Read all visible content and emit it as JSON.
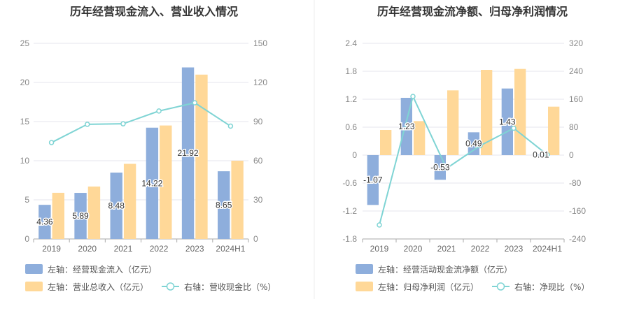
{
  "colors": {
    "bar_blue": "#8eaedc",
    "bar_orange": "#ffd898",
    "line_cyan": "#7fd4d4",
    "grid": "#e6e6ee",
    "axis": "#aaaaaa",
    "divider": "#eeeeee"
  },
  "chart_data": [
    {
      "type": "bar",
      "title": "历年经营现金流入、营业收入情况",
      "categories": [
        "2019",
        "2020",
        "2021",
        "2022",
        "2023",
        "2024H1"
      ],
      "left_axis": {
        "ticks": [
          "0",
          "5",
          "10",
          "15",
          "20",
          "25"
        ],
        "ylim": [
          0,
          25
        ]
      },
      "right_axis": {
        "ticks": [
          "0",
          "30",
          "60",
          "90",
          "120",
          "150"
        ],
        "ylim": [
          0,
          150
        ]
      },
      "series": [
        {
          "name": "经营现金流入",
          "axis": "left",
          "kind": "bar",
          "values": [
            4.36,
            5.89,
            8.48,
            14.22,
            21.92,
            8.65
          ],
          "labels": [
            "4.36",
            "5.89",
            "8.48",
            "14.22",
            "21.92",
            "8.65"
          ]
        },
        {
          "name": "营业总收入",
          "axis": "left",
          "kind": "bar",
          "values": [
            5.9,
            6.7,
            9.6,
            14.5,
            21.0,
            10.0
          ]
        },
        {
          "name": "营收现金比",
          "axis": "right",
          "kind": "line",
          "values": [
            73.9,
            87.9,
            88.3,
            98.1,
            104.4,
            86.5
          ]
        }
      ],
      "legend": [
        {
          "swatch": "bar",
          "color": "#8eaedc",
          "text": "左轴：经营现金流入（亿元）"
        },
        {
          "swatch": "bar",
          "color": "#ffd898",
          "text": "左轴：营业总收入（亿元）"
        },
        {
          "swatch": "line",
          "color": "#7fd4d4",
          "text": "右轴：营收现金比（%）"
        }
      ]
    },
    {
      "type": "bar",
      "title": "历年经营现金流净额、归母净利润情况",
      "categories": [
        "2019",
        "2020",
        "2021",
        "2022",
        "2023",
        "2024H1"
      ],
      "left_axis": {
        "ticks": [
          "-1.8",
          "-1.2",
          "-0.6",
          "0",
          "0.6",
          "1.2",
          "1.8",
          "2.4"
        ],
        "ylim": [
          -1.8,
          2.4
        ]
      },
      "right_axis": {
        "ticks": [
          "-240",
          "-160",
          "-80",
          "0",
          "80",
          "160",
          "240",
          "320"
        ],
        "ylim": [
          -240,
          320
        ]
      },
      "series": [
        {
          "name": "经营活动现金流净额",
          "axis": "left",
          "kind": "bar",
          "values": [
            -1.07,
            1.23,
            -0.53,
            0.49,
            1.43,
            0.01
          ],
          "labels": [
            "-1.07",
            "1.23",
            "-0.53",
            "0.49",
            "1.43",
            "0.01"
          ]
        },
        {
          "name": "归母净利润",
          "axis": "left",
          "kind": "bar",
          "values": [
            0.54,
            0.73,
            1.39,
            1.83,
            1.85,
            1.04
          ]
        },
        {
          "name": "净现比",
          "axis": "right",
          "kind": "line",
          "values": [
            -200,
            168,
            -38,
            27,
            77,
            1
          ]
        }
      ],
      "legend": [
        {
          "swatch": "bar",
          "color": "#8eaedc",
          "text": "左轴：经营活动现金流净额（亿元）"
        },
        {
          "swatch": "bar",
          "color": "#ffd898",
          "text": "左轴：归母净利润（亿元）"
        },
        {
          "swatch": "line",
          "color": "#7fd4d4",
          "text": "右轴：净现比（%）"
        }
      ]
    }
  ]
}
